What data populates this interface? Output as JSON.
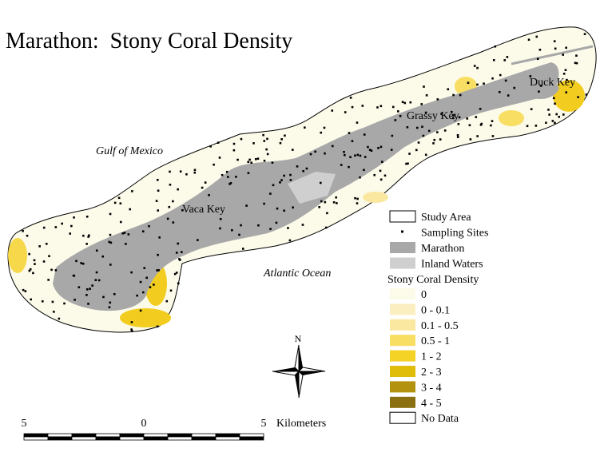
{
  "title": "Marathon:  Stony Coral Density",
  "places": {
    "gulf": "Gulf of Mexico",
    "atlantic": "Atlantic Ocean",
    "vaca": "Vaca Key",
    "grassy": "Grassy Key",
    "duck": "Duck Key"
  },
  "legend": {
    "items": [
      {
        "label": "Study Area"
      },
      {
        "label": "Sampling Sites"
      },
      {
        "label": "Marathon"
      },
      {
        "label": "Inland Waters"
      }
    ],
    "density_title": "Stony Coral Density",
    "density_classes": [
      {
        "label": "0",
        "color": "#fcfbea"
      },
      {
        "label": "0 - 0.1",
        "color": "#fbefc2"
      },
      {
        "label": "0.1 - 0.5",
        "color": "#fae7a0"
      },
      {
        "label": "0.5 - 1",
        "color": "#f8de62"
      },
      {
        "label": "1 - 2",
        "color": "#f4d226"
      },
      {
        "label": "2 - 3",
        "color": "#e0bd08"
      },
      {
        "label": "3 - 4",
        "color": "#b39210"
      },
      {
        "label": "4 - 5",
        "color": "#8a7010"
      },
      {
        "label": "No Data",
        "color": "#ffffff"
      }
    ]
  },
  "scale": {
    "labels": [
      "5",
      "0",
      "5"
    ],
    "unit": "Kilometers"
  },
  "north": "N"
}
